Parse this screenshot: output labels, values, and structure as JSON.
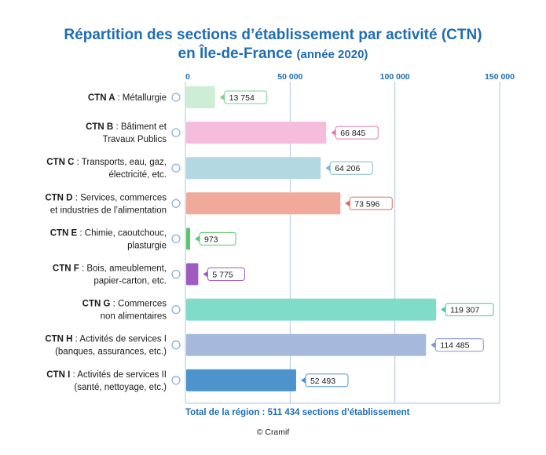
{
  "title_line1": "Répartition des sections d’établissement par activité (CTN)",
  "title_line2": "en Île-de-France",
  "title_suffix": "(année 2020)",
  "total_text": "Total de la région : 511 434 sections d’établissement",
  "credit": "© Cramif",
  "colors": {
    "title": "#1f6db3",
    "axis_label": "#1f6db3",
    "grid": "#a9c6e3"
  },
  "chart_data": {
    "type": "bar",
    "orientation": "horizontal",
    "xlim": [
      0,
      150000
    ],
    "ticks": [
      0,
      50000,
      100000,
      150000
    ],
    "tick_labels": [
      "0",
      "50 000",
      "100 000",
      "150 000"
    ],
    "grid": true,
    "categories": [
      {
        "code": "CTN A",
        "label_lines": [
          ": Métallurgie"
        ],
        "value": 13754,
        "value_label": "13 754",
        "color": "#cdeed5",
        "label_color": "#7fcf93"
      },
      {
        "code": "CTN B",
        "label_lines": [
          ": Bâtiment et",
          "Travaux Publics"
        ],
        "value": 66845,
        "value_label": "66 845",
        "color": "#f6bcdc",
        "label_color": "#e77bb3"
      },
      {
        "code": "CTN C",
        "label_lines": [
          ": Transports, eau, gaz,",
          "électricité, etc."
        ],
        "value": 64206,
        "value_label": "64 206",
        "color": "#b3d8e2",
        "label_color": "#7fb9ca"
      },
      {
        "code": "CTN D",
        "label_lines": [
          ": Services, commerces",
          "et industries de l’alimentation"
        ],
        "value": 73596,
        "value_label": "73 596",
        "color": "#f0a99b",
        "label_color": "#e06a57"
      },
      {
        "code": "CTN E",
        "label_lines": [
          ": Chimie, caoutchouc,",
          "plasturgie"
        ],
        "value": 973,
        "value_label": "973",
        "color": "#5cc46d",
        "label_color": "#5cc46d"
      },
      {
        "code": "CTN F",
        "label_lines": [
          ": Bois, ameublement,",
          "papier-carton, etc."
        ],
        "value": 5775,
        "value_label": "5 775",
        "color": "#9e5cc0",
        "label_color": "#9e5cc0"
      },
      {
        "code": "CTN G",
        "label_lines": [
          ": Commerces",
          "non alimentaires"
        ],
        "value": 119307,
        "value_label": "119 307",
        "color": "#7fdcc8",
        "label_color": "#4cc7ab"
      },
      {
        "code": "CTN H",
        "label_lines": [
          ": Activités de services I",
          "(banques, assurances, etc.)"
        ],
        "value": 114485,
        "value_label": "114 485",
        "color": "#a6b8dc",
        "label_color": "#7e96c8"
      },
      {
        "code": "CTN I",
        "label_lines": [
          ": Activités de services II",
          "(santé, nettoyage, etc.)"
        ],
        "value": 52493,
        "value_label": "52 493",
        "color": "#4e94cc",
        "label_color": "#4e94cc"
      }
    ]
  }
}
